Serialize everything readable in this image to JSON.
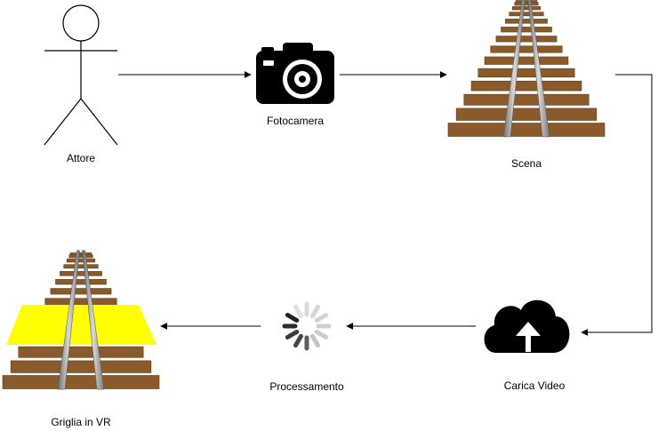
{
  "nodes": {
    "actor": {
      "label": "Attore"
    },
    "camera": {
      "label": "Fotocamera"
    },
    "scene": {
      "label": "Scena"
    },
    "upload": {
      "label": "Carica Video"
    },
    "processing": {
      "label": "Processamento"
    },
    "vr_grid": {
      "label": "Griglia in VR"
    }
  },
  "icons": {
    "actor": "stick-figure-icon",
    "camera": "camera-icon",
    "scene": "railway-track-icon",
    "upload": "cloud-upload-icon",
    "processing": "loading-spinner-icon",
    "vr_grid": "railway-track-grid-icon"
  },
  "colors": {
    "stroke": "#000000",
    "rail": "#8f8f8f",
    "sleeper": "#8b5a2b",
    "grid_overlay": "#ffff00",
    "spinner_light": "#d4d4d4",
    "spinner_dark": "#333333"
  }
}
